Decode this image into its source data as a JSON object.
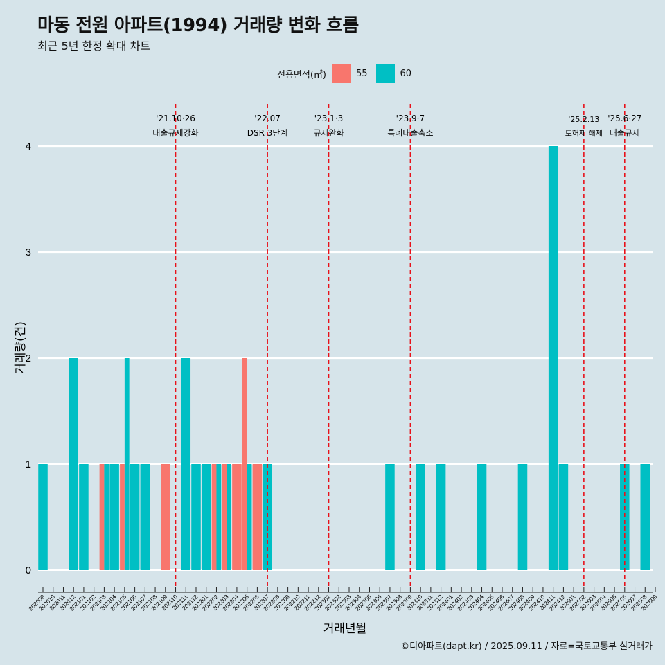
{
  "header": {
    "title": "마동 전원 아파트(1994) 거래량 변화 흐름",
    "subtitle": "최근 5년 한정 확대 차트"
  },
  "caption": "©디아파트(dapt.kr) / 2025.09.11 / 자료=국토교통부 실거래가",
  "legend": {
    "title": "전용면적(㎡)",
    "items": [
      {
        "label": "55",
        "color": "#f8766d"
      },
      {
        "label": "60",
        "color": "#00bfc4"
      }
    ]
  },
  "chart_data": {
    "type": "bar",
    "xlabel": "거래년월",
    "ylabel": "거래량(건)",
    "ylim": [
      0,
      4
    ],
    "yticks": [
      0,
      1,
      2,
      3,
      4
    ],
    "grid": true,
    "legend_position": "top",
    "categories": [
      "202009",
      "202010",
      "202011",
      "202012",
      "202101",
      "202102",
      "202103",
      "202104",
      "202105",
      "202106",
      "202107",
      "202108",
      "202109",
      "202110",
      "202111",
      "202112",
      "202201",
      "202202",
      "202203",
      "202204",
      "202205",
      "202206",
      "202207",
      "202208",
      "202209",
      "202210",
      "202211",
      "202212",
      "202301",
      "202302",
      "202303",
      "202304",
      "202305",
      "202306",
      "202307",
      "202308",
      "202309",
      "202310",
      "202311",
      "202312",
      "202401",
      "202402",
      "202403",
      "202404",
      "202405",
      "202406",
      "202407",
      "202408",
      "202409",
      "202410",
      "202411",
      "202412",
      "202501",
      "202502",
      "202503",
      "202504",
      "202505",
      "202506",
      "202507",
      "202508",
      "202509"
    ],
    "series": [
      {
        "name": "55",
        "color": "#f8766d",
        "values": [
          0,
          0,
          0,
          0,
          0,
          0,
          1,
          0,
          1,
          0,
          0,
          0,
          1,
          0,
          0,
          0,
          0,
          1,
          1,
          1,
          2,
          1,
          0,
          0,
          0,
          0,
          0,
          0,
          0,
          0,
          0,
          0,
          0,
          0,
          0,
          0,
          0,
          0,
          0,
          0,
          0,
          0,
          0,
          0,
          0,
          0,
          0,
          0,
          0,
          0,
          0,
          0,
          0,
          0,
          0,
          0,
          0,
          0,
          0,
          0,
          0
        ]
      },
      {
        "name": "60",
        "color": "#00bfc4",
        "values": [
          1,
          0,
          0,
          2,
          1,
          0,
          1,
          1,
          2,
          1,
          1,
          0,
          0,
          0,
          2,
          1,
          1,
          1,
          1,
          0,
          1,
          0,
          1,
          0,
          0,
          0,
          0,
          0,
          0,
          0,
          0,
          0,
          0,
          0,
          1,
          0,
          0,
          1,
          0,
          1,
          0,
          0,
          0,
          1,
          0,
          0,
          0,
          1,
          0,
          0,
          4,
          1,
          0,
          0,
          0,
          0,
          0,
          1,
          0,
          1,
          0
        ]
      }
    ],
    "events": [
      {
        "date": "202110",
        "line1": "'21.10·26",
        "line2": "대출규제강화"
      },
      {
        "date": "202207",
        "line1": "'22.07",
        "line2": "DSR 3단계"
      },
      {
        "date": "202301",
        "line1": "'23.1·3",
        "line2": "규제완화"
      },
      {
        "date": "202309",
        "line1": "'23.9·7",
        "line2": "특례대출축소"
      },
      {
        "date": "202502",
        "line1": "'25.2.13",
        "line2": "토허제 해제"
      },
      {
        "date": "202506",
        "line1": "'25.6·27",
        "line2": "대출규제"
      }
    ]
  }
}
